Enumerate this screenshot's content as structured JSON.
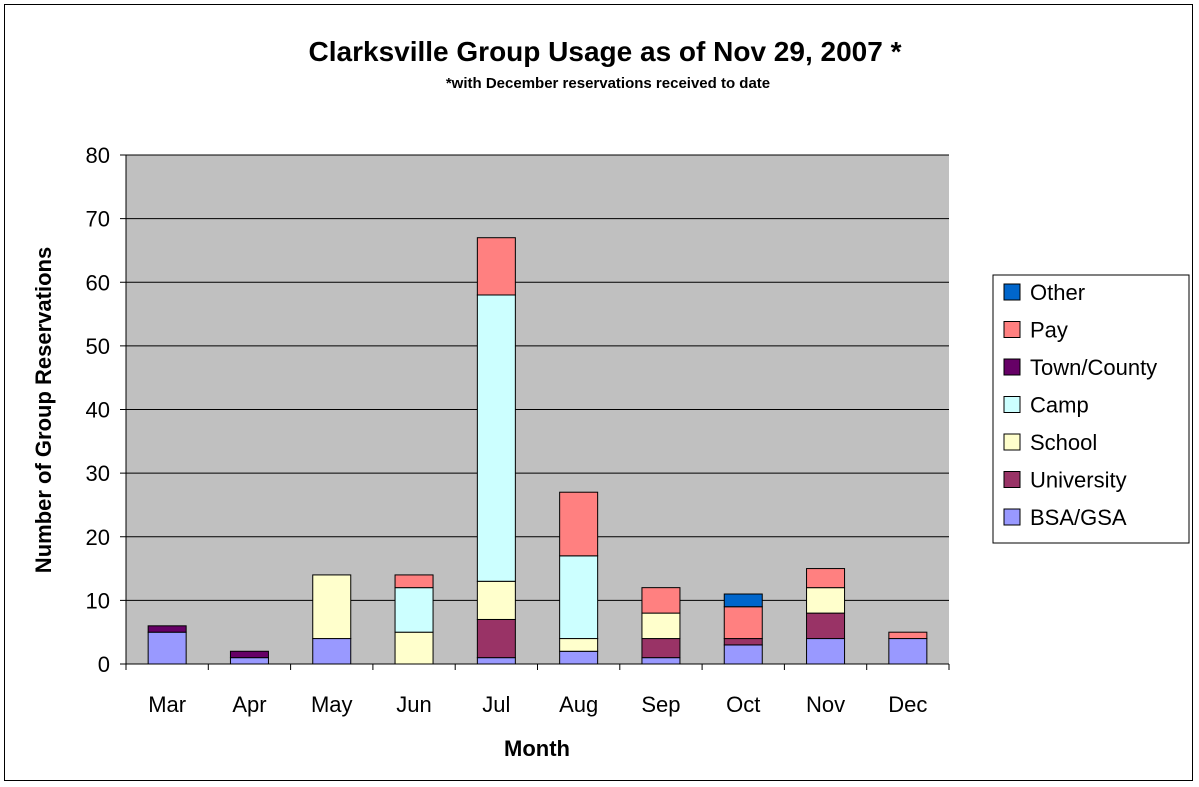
{
  "chart_data": {
    "type": "bar",
    "stacked": true,
    "title": "Clarksville Group Usage as of Nov 29, 2007 *",
    "subtitle": "*with December reservations received to date",
    "xlabel": "Month",
    "ylabel": "Number of Group Reservations",
    "ylim": [
      0,
      80
    ],
    "yticks": [
      0,
      10,
      20,
      30,
      40,
      50,
      60,
      70,
      80
    ],
    "grid": true,
    "legend_position": "right",
    "categories": [
      "Mar",
      "Apr",
      "May",
      "Jun",
      "Jul",
      "Aug",
      "Sep",
      "Oct",
      "Nov",
      "Dec"
    ],
    "series": [
      {
        "name": "BSA/GSA",
        "color": "#9999ff",
        "values": [
          5,
          1,
          4,
          0,
          1,
          2,
          1,
          3,
          4,
          4
        ]
      },
      {
        "name": "University",
        "color": "#993366",
        "values": [
          0,
          0,
          0,
          0,
          6,
          0,
          3,
          1,
          4,
          0
        ]
      },
      {
        "name": "School",
        "color": "#ffffcc",
        "values": [
          0,
          0,
          10,
          5,
          6,
          2,
          4,
          0,
          4,
          0
        ]
      },
      {
        "name": "Camp",
        "color": "#ccffff",
        "values": [
          0,
          0,
          0,
          7,
          45,
          13,
          0,
          0,
          0,
          0
        ]
      },
      {
        "name": "Town/County",
        "color": "#660066",
        "values": [
          1,
          1,
          0,
          0,
          0,
          0,
          0,
          0,
          0,
          0
        ]
      },
      {
        "name": "Pay",
        "color": "#ff8080",
        "values": [
          0,
          0,
          0,
          2,
          9,
          10,
          4,
          5,
          3,
          1
        ]
      },
      {
        "name": "Other",
        "color": "#0066cc",
        "values": [
          0,
          0,
          0,
          0,
          0,
          0,
          0,
          2,
          0,
          0
        ]
      }
    ],
    "legend_order": [
      "Other",
      "Pay",
      "Town/County",
      "Camp",
      "School",
      "University",
      "BSA/GSA"
    ]
  },
  "colors": {
    "plot_background": "#c0c0c0",
    "gridline": "#000000"
  }
}
